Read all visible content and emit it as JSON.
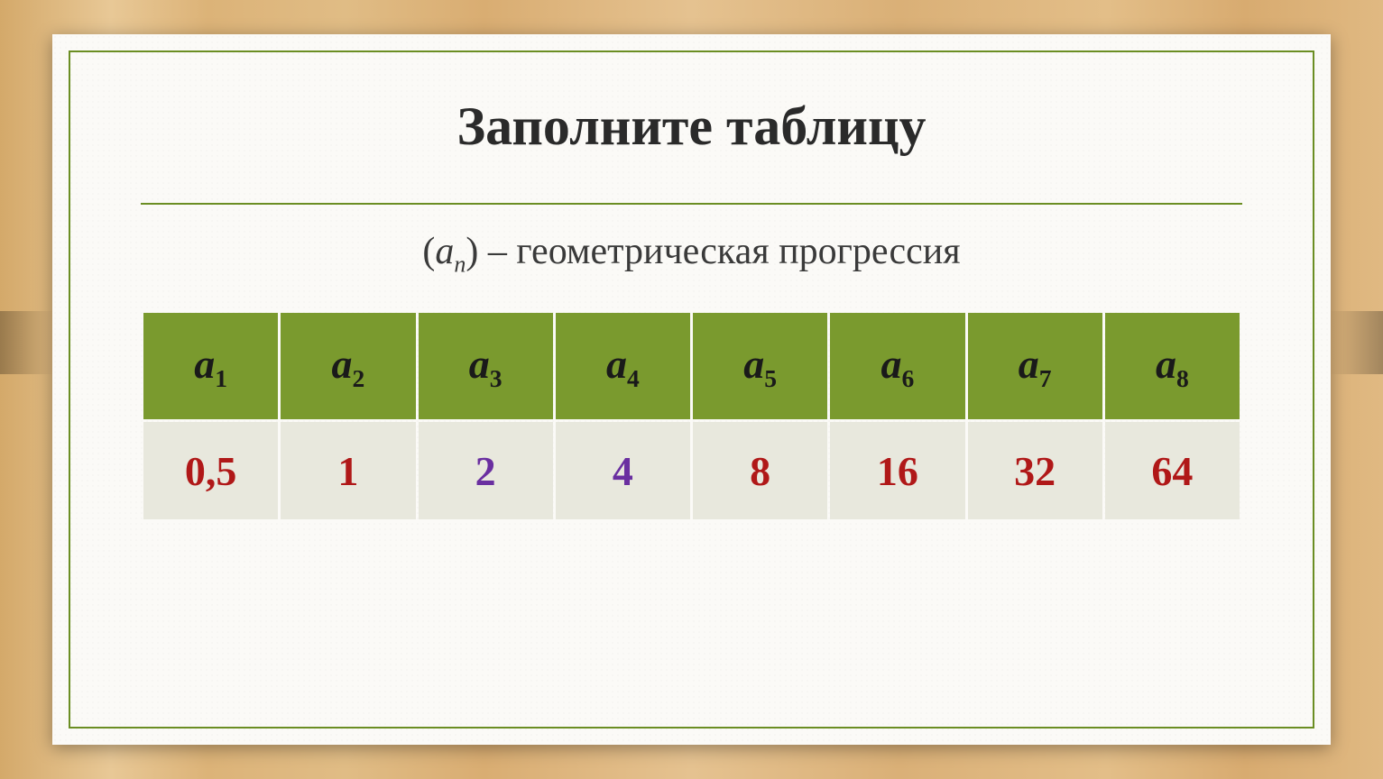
{
  "title": "Заполните  таблицу",
  "subtitle": {
    "prefix": "(",
    "var": "a",
    "sub": "n",
    "suffix": ") – геометрическая прогрессия"
  },
  "table": {
    "header_var": "a",
    "header_bg": "#7a9a2e",
    "row_bg": "#e8e8dd",
    "columns": [
      {
        "idx": "1",
        "value": "0,5",
        "color": "#b01818"
      },
      {
        "idx": "2",
        "value": "1",
        "color": "#b01818"
      },
      {
        "idx": "3",
        "value": "2",
        "color": "#6a2fa0"
      },
      {
        "idx": "4",
        "value": "4",
        "color": "#6a2fa0"
      },
      {
        "idx": "5",
        "value": "8",
        "color": "#b01818"
      },
      {
        "idx": "6",
        "value": "16",
        "color": "#b01818"
      },
      {
        "idx": "7",
        "value": "32",
        "color": "#b01818"
      },
      {
        "idx": "8",
        "value": "64",
        "color": "#b01818"
      }
    ]
  },
  "colors": {
    "border": "#6b8e23",
    "slide_bg": "#fbfaf7",
    "title_text": "#2a2a2a"
  }
}
